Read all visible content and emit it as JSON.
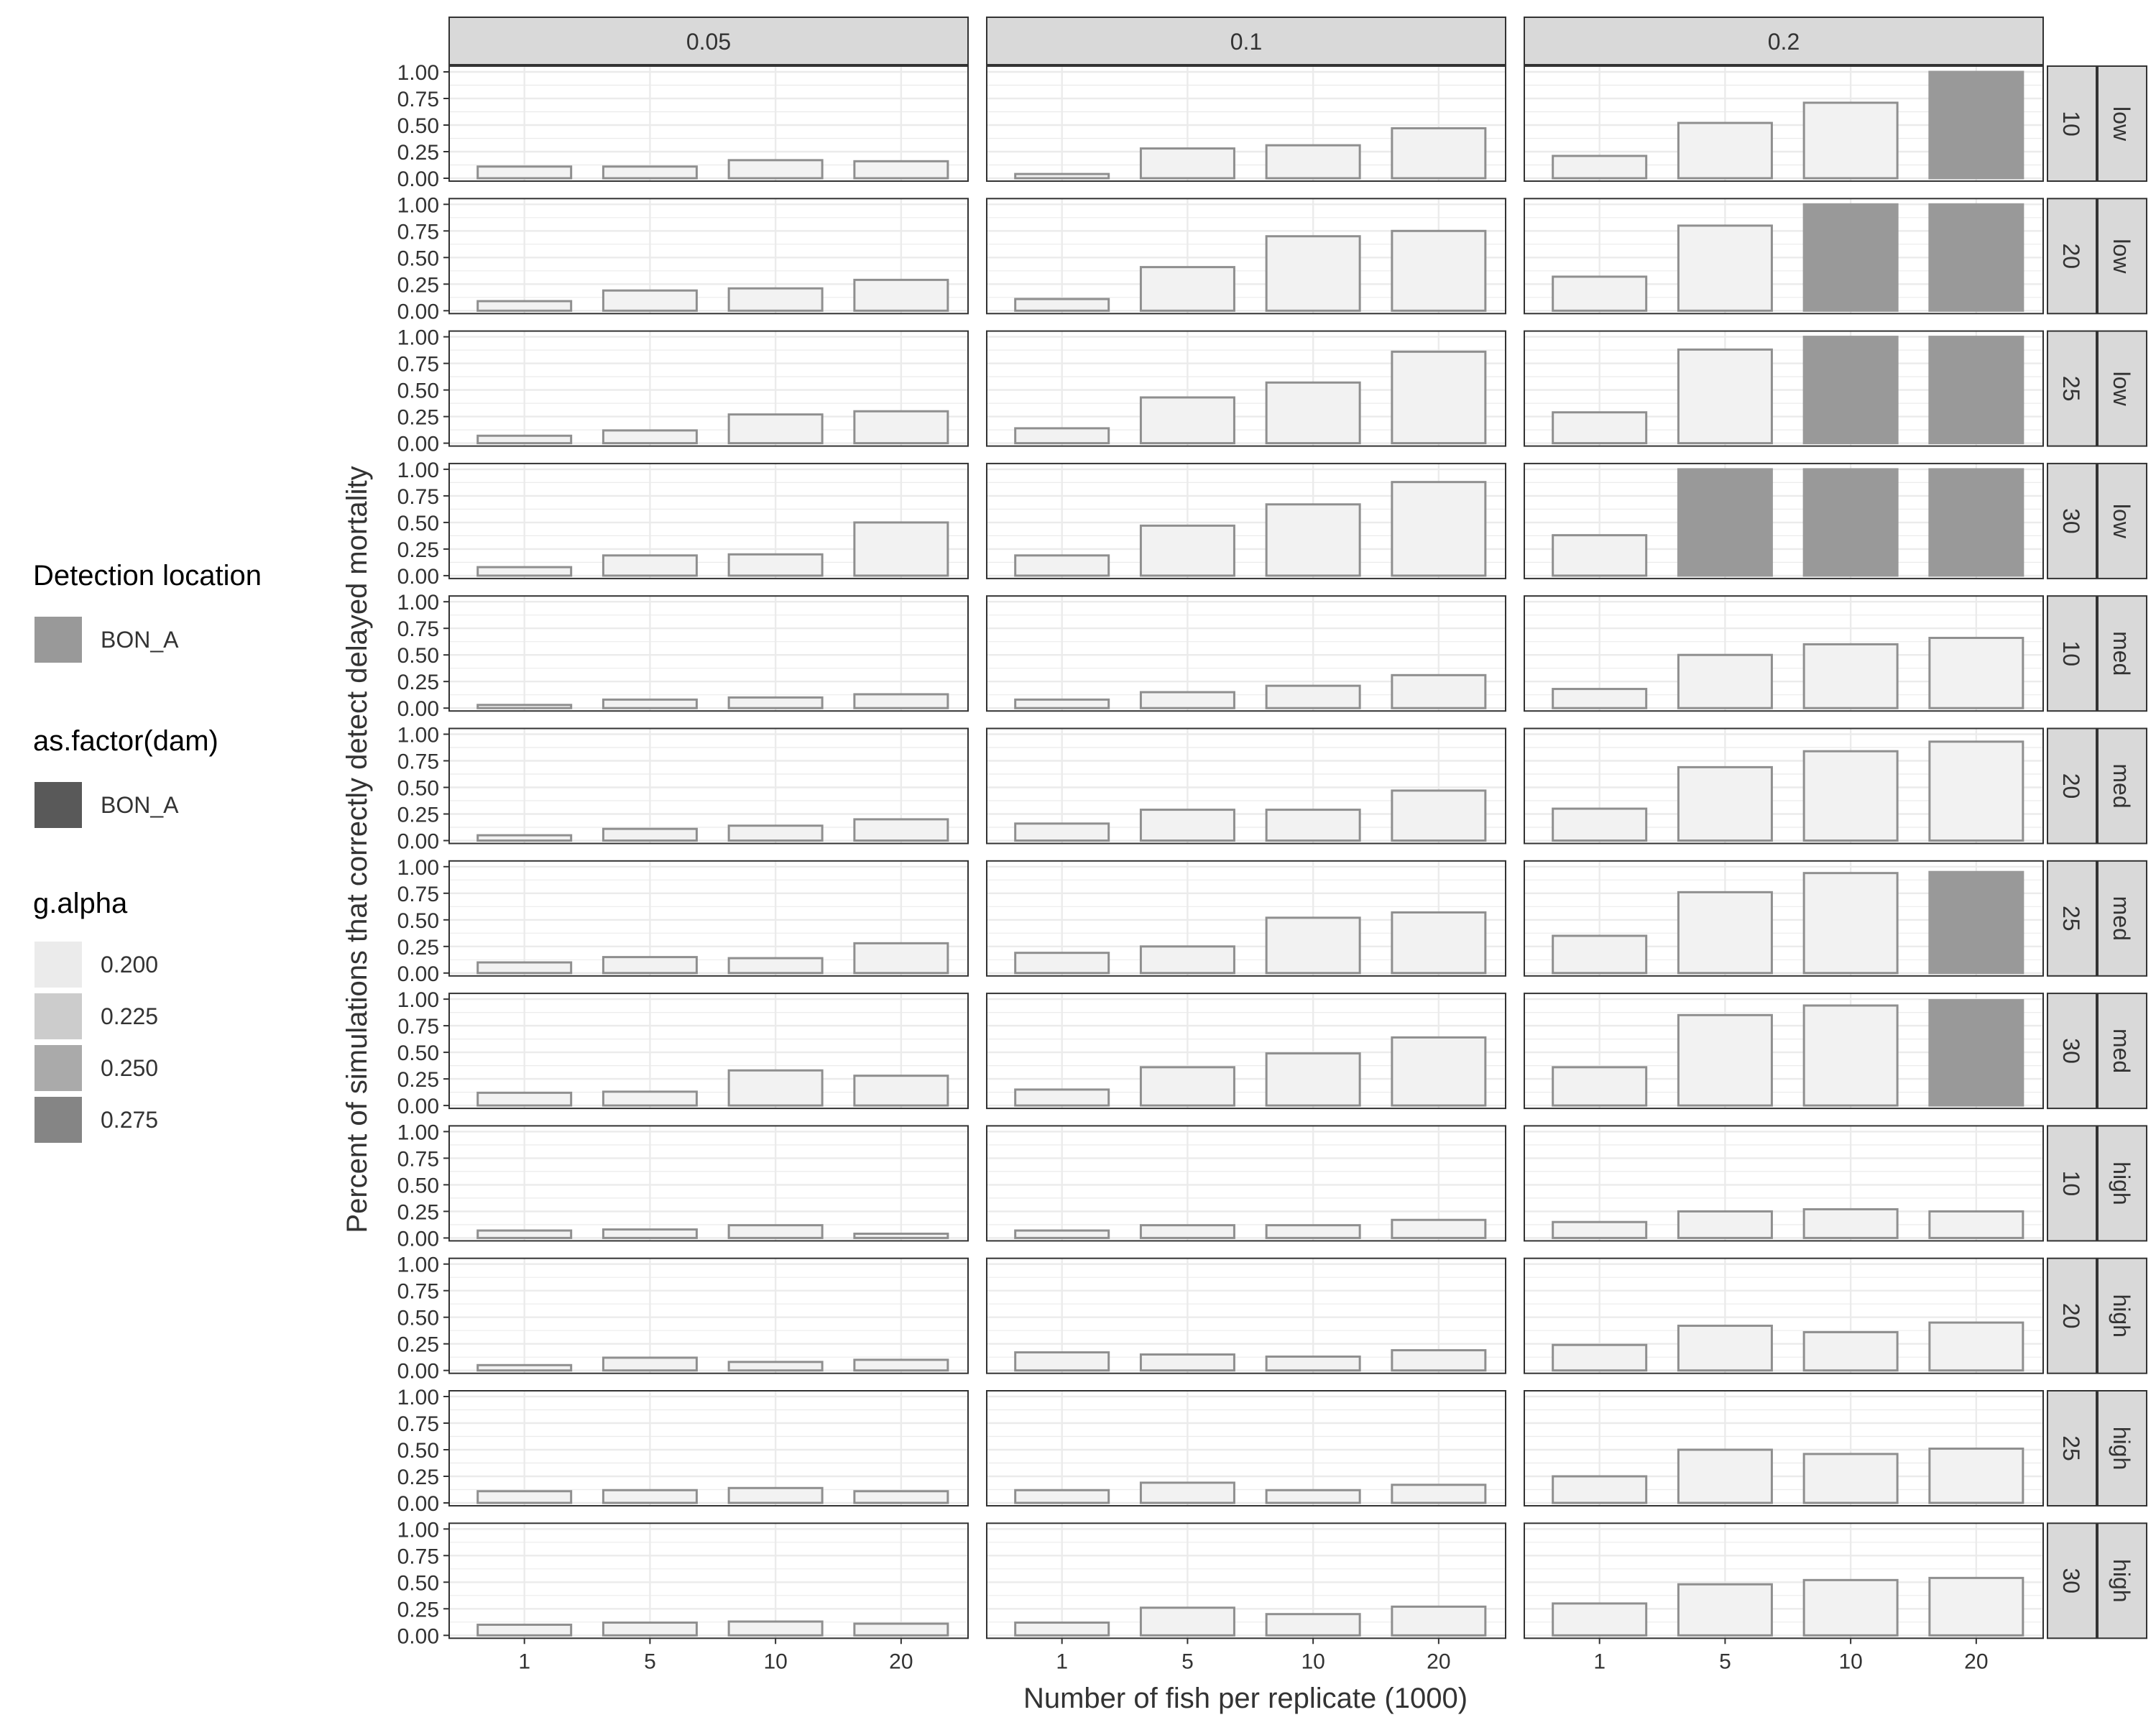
{
  "chart_data": {
    "type": "bar",
    "title": "",
    "xlabel": "Number of fish per replicate (1000)",
    "ylabel": "Percent of simulations that correctly detect delayed mortality",
    "categories": [
      "1",
      "5",
      "10",
      "20"
    ],
    "ylim": [
      0,
      1
    ],
    "yticks": [
      "0.00",
      "0.25",
      "0.50",
      "0.75",
      "1.00"
    ],
    "grid": true,
    "legend_position": "left",
    "column_strips": [
      "0.05",
      "0.1",
      "0.2"
    ],
    "row_strips": [
      {
        "n": "10",
        "level": "low"
      },
      {
        "n": "20",
        "level": "low"
      },
      {
        "n": "25",
        "level": "low"
      },
      {
        "n": "30",
        "level": "low"
      },
      {
        "n": "10",
        "level": "med"
      },
      {
        "n": "20",
        "level": "med"
      },
      {
        "n": "25",
        "level": "med"
      },
      {
        "n": "30",
        "level": "med"
      },
      {
        "n": "10",
        "level": "high"
      },
      {
        "n": "20",
        "level": "high"
      },
      {
        "n": "25",
        "level": "high"
      },
      {
        "n": "30",
        "level": "high"
      }
    ],
    "values": [
      [
        [
          0.11,
          0.11,
          0.17,
          0.16
        ],
        [
          0.04,
          0.28,
          0.31,
          0.47
        ],
        [
          0.21,
          0.52,
          0.71,
          1.0
        ]
      ],
      [
        [
          0.09,
          0.19,
          0.21,
          0.29
        ],
        [
          0.11,
          0.41,
          0.7,
          0.75
        ],
        [
          0.32,
          0.8,
          1.0,
          1.0
        ]
      ],
      [
        [
          0.07,
          0.12,
          0.27,
          0.3
        ],
        [
          0.14,
          0.43,
          0.57,
          0.86
        ],
        [
          0.29,
          0.88,
          1.0,
          1.0
        ]
      ],
      [
        [
          0.08,
          0.19,
          0.2,
          0.5
        ],
        [
          0.19,
          0.47,
          0.67,
          0.88
        ],
        [
          0.38,
          1.0,
          1.0,
          1.0
        ]
      ],
      [
        [
          0.03,
          0.08,
          0.1,
          0.13
        ],
        [
          0.08,
          0.15,
          0.21,
          0.31
        ],
        [
          0.18,
          0.5,
          0.6,
          0.66
        ]
      ],
      [
        [
          0.05,
          0.11,
          0.14,
          0.2
        ],
        [
          0.16,
          0.29,
          0.29,
          0.47
        ],
        [
          0.3,
          0.69,
          0.84,
          0.93
        ]
      ],
      [
        [
          0.1,
          0.15,
          0.14,
          0.28
        ],
        [
          0.19,
          0.25,
          0.52,
          0.57
        ],
        [
          0.35,
          0.76,
          0.94,
          0.95
        ]
      ],
      [
        [
          0.12,
          0.13,
          0.33,
          0.28
        ],
        [
          0.15,
          0.36,
          0.49,
          0.64
        ],
        [
          0.36,
          0.85,
          0.94,
          0.99
        ]
      ],
      [
        [
          0.07,
          0.08,
          0.12,
          0.04
        ],
        [
          0.07,
          0.12,
          0.12,
          0.17
        ],
        [
          0.15,
          0.25,
          0.27,
          0.25
        ]
      ],
      [
        [
          0.05,
          0.12,
          0.08,
          0.1
        ],
        [
          0.17,
          0.15,
          0.13,
          0.19
        ],
        [
          0.24,
          0.42,
          0.36,
          0.45
        ]
      ],
      [
        [
          0.11,
          0.12,
          0.14,
          0.11
        ],
        [
          0.12,
          0.19,
          0.12,
          0.17
        ],
        [
          0.25,
          0.5,
          0.46,
          0.51
        ]
      ],
      [
        [
          0.1,
          0.12,
          0.13,
          0.11
        ],
        [
          0.12,
          0.26,
          0.2,
          0.27
        ],
        [
          0.3,
          0.48,
          0.52,
          0.54
        ]
      ]
    ],
    "legends": [
      {
        "title": "Detection location",
        "items": [
          {
            "label": "BON_A",
            "color": "#999999"
          }
        ]
      },
      {
        "title": "as.factor(dam)",
        "items": [
          {
            "label": "BON_A",
            "color": "#595959"
          }
        ]
      },
      {
        "title": "g.alpha",
        "items": [
          {
            "label": "0.200",
            "color": "#ebebeb"
          },
          {
            "label": "0.225",
            "color": "#cccccc"
          },
          {
            "label": "0.250",
            "color": "#aaaaaa"
          },
          {
            "label": "0.275",
            "color": "#858585"
          }
        ]
      }
    ],
    "colors": {
      "bar_fill_light": "#f2f2f2",
      "bar_fill_full": "#999999",
      "bar_outline": "#8f8f8f",
      "strip_fill": "#d9d9d9",
      "grid": "#ebebeb"
    }
  }
}
